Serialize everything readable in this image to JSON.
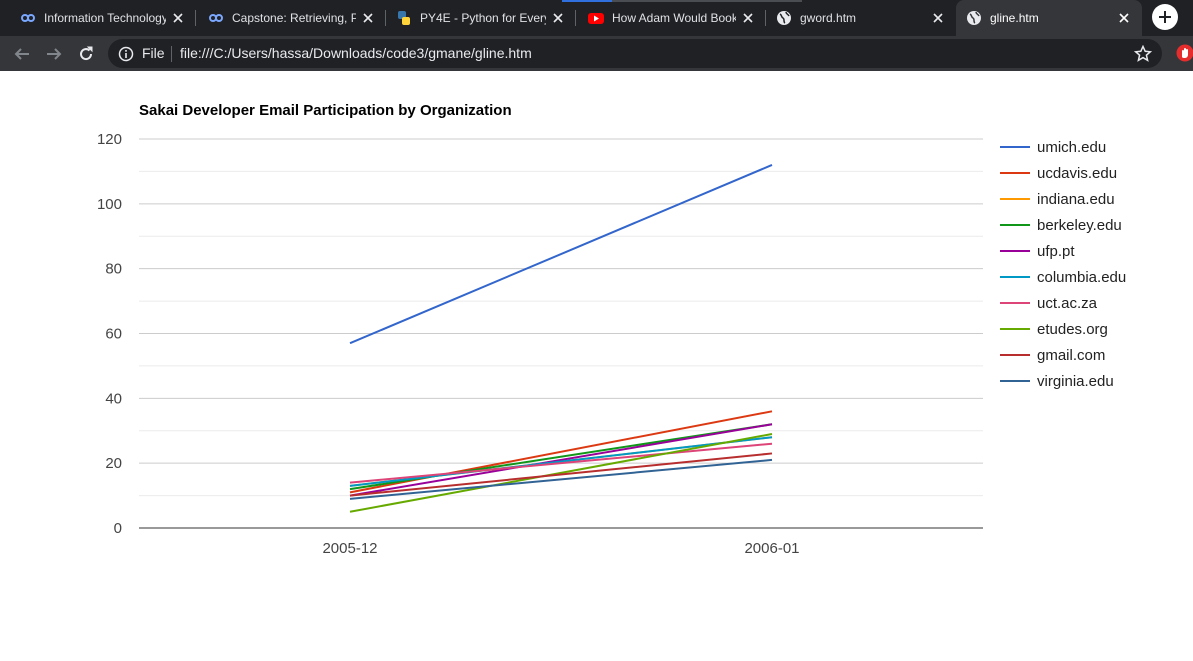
{
  "browser": {
    "tabs": [
      {
        "title": "Information Technology",
        "favicon": "coursera-icon",
        "active": false
      },
      {
        "title": "Capstone: Retrieving, Pr",
        "favicon": "coursera-icon",
        "active": false
      },
      {
        "title": "PY4E - Python for Every",
        "favicon": "python-icon",
        "active": false
      },
      {
        "title": "How Adam Would Book",
        "favicon": "youtube-icon",
        "active": false
      },
      {
        "title": "gword.htm",
        "favicon": "globe-icon",
        "active": false
      },
      {
        "title": "gline.htm",
        "favicon": "globe-icon",
        "active": true
      }
    ],
    "address": {
      "scheme_label": "File",
      "url": "file:///C:/Users/hassa/Downloads/code3/gmane/gline.htm"
    },
    "colors": {
      "tabstrip": "#202124",
      "toolbar": "#35363a",
      "omnibox": "#202124"
    }
  },
  "chart_data": {
    "type": "line",
    "title": "Sakai Developer Email Participation by Organization",
    "categories": [
      "2005-12",
      "2006-01"
    ],
    "ylim": [
      0,
      120
    ],
    "yticks": [
      0,
      20,
      40,
      60,
      80,
      100,
      120
    ],
    "grid": true,
    "legend_position": "right",
    "series": [
      {
        "name": "umich.edu",
        "values": [
          57,
          112
        ],
        "color": "#3366cc"
      },
      {
        "name": "ucdavis.edu",
        "values": [
          11,
          36
        ],
        "color": "#dc3912"
      },
      {
        "name": "indiana.edu",
        "values": [
          13,
          28
        ],
        "color": "#ff9900"
      },
      {
        "name": "berkeley.edu",
        "values": [
          12,
          32
        ],
        "color": "#109618"
      },
      {
        "name": "ufp.pt",
        "values": [
          10,
          32
        ],
        "color": "#990099"
      },
      {
        "name": "columbia.edu",
        "values": [
          13,
          28
        ],
        "color": "#0099c6"
      },
      {
        "name": "uct.ac.za",
        "values": [
          14,
          26
        ],
        "color": "#dd4477"
      },
      {
        "name": "etudes.org",
        "values": [
          5,
          29
        ],
        "color": "#66aa00"
      },
      {
        "name": "gmail.com",
        "values": [
          10,
          23
        ],
        "color": "#b82e2e"
      },
      {
        "name": "virginia.edu",
        "values": [
          9,
          21
        ],
        "color": "#316395"
      }
    ]
  }
}
